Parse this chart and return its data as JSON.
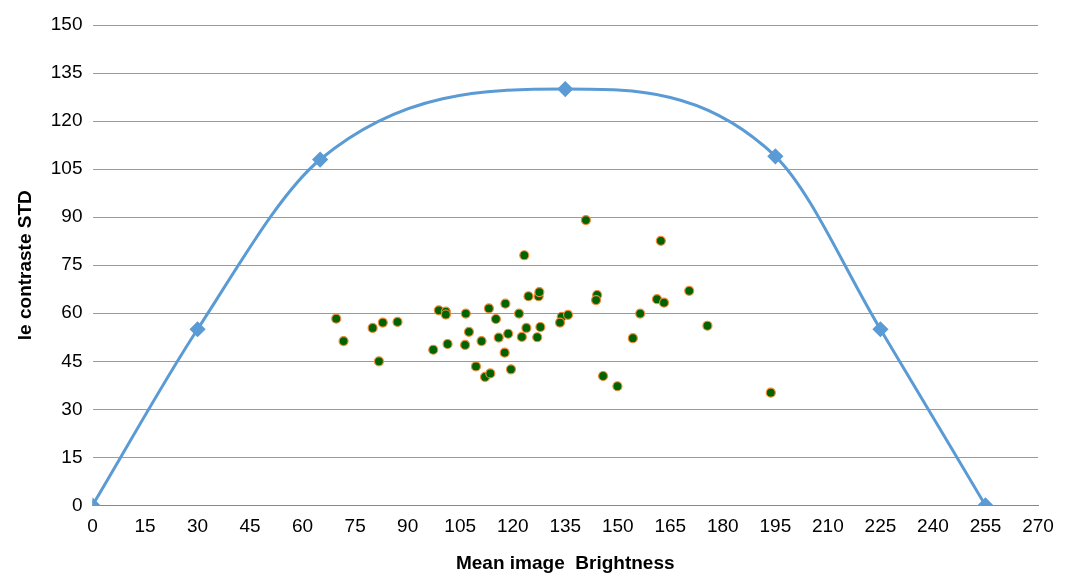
{
  "chart_data": {
    "type": "scatter",
    "xlabel": "Mean image  Brightness",
    "ylabel": "le contraste STD",
    "xlim": [
      0,
      270
    ],
    "xticks": [
      0,
      15,
      30,
      45,
      60,
      75,
      90,
      105,
      120,
      135,
      150,
      165,
      180,
      195,
      210,
      225,
      240,
      255,
      270
    ],
    "ylim": [
      0,
      150
    ],
    "yticks": [
      0,
      15,
      30,
      45,
      60,
      75,
      90,
      105,
      120,
      135,
      150
    ],
    "grid": "y",
    "legend": false,
    "series": [
      {
        "type": "line",
        "color": "#5b9bd5",
        "marker": "diamond",
        "line_style": "solid",
        "x": [
          0,
          30,
          65,
          135,
          195,
          225,
          255
        ],
        "values": [
          0,
          55,
          108,
          130,
          109,
          55,
          0
        ]
      },
      {
        "type": "scatter",
        "color": "#a5a5a5",
        "marker": "triangle",
        "x": [
          0
        ],
        "values": [
          0
        ]
      },
      {
        "type": "scatter",
        "color": "#006400",
        "marker": "circle",
        "x": [
          69.6,
          71.7,
          80.0,
          82.9,
          81.8,
          87.1,
          97.3,
          98.9,
          100.9,
          100.9,
          101.4,
          106.6,
          107.5,
          106.4,
          109.5,
          112.1,
          113.6,
          111.1,
          113.2,
          115.2,
          116.0,
          117.7,
          117.9,
          118.7,
          119.5,
          121.8,
          123.3,
          122.6,
          123.9,
          124.5,
          127.0,
          127.9,
          127.4,
          127.6,
          140.9,
          162.3,
          144.1,
          143.8,
          134.0,
          135.8,
          133.5,
          156.4,
          161.2,
          163.2,
          170.4,
          175.6,
          154.3,
          145.8,
          149.9,
          193.7
        ],
        "values": [
          58.3,
          51.3,
          55.4,
          57.1,
          45.0,
          57.3,
          48.6,
          60.9,
          60.5,
          59.6,
          50.4,
          59.9,
          54.2,
          50.1,
          43.4,
          40.1,
          41.2,
          51.3,
          61.5,
          58.2,
          52.4,
          47.7,
          63.0,
          53.6,
          42.5,
          59.9,
          78.1,
          52.6,
          55.4,
          65.3,
          52.5,
          55.7,
          65.3,
          66.6,
          89.1,
          82.6,
          65.7,
          64.1,
          58.9,
          59.5,
          57.1,
          59.9,
          64.4,
          63.3,
          67.0,
          56.1,
          52.2,
          40.4,
          37.2,
          35.2
        ]
      }
    ]
  }
}
